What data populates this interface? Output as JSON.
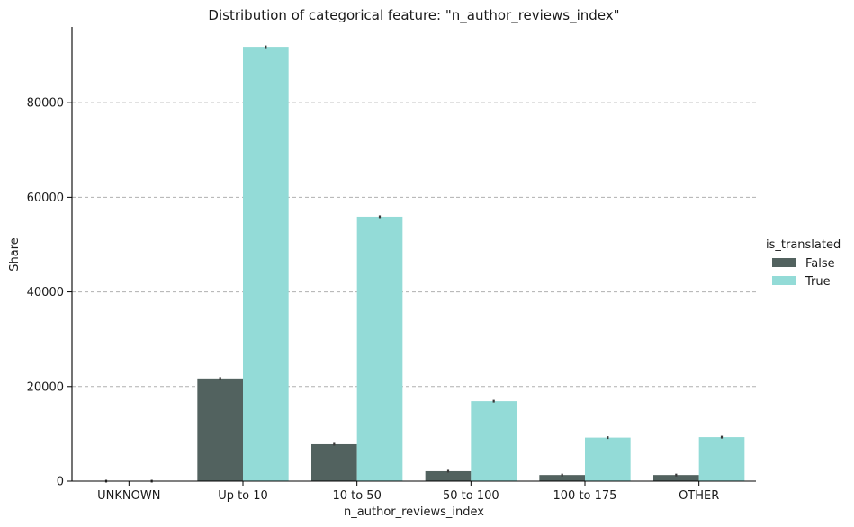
{
  "chart_data": {
    "type": "bar",
    "title": "Distribution of categorical feature: \"n_author_reviews_index\"",
    "xlabel": "n_author_reviews_index",
    "ylabel": "Share",
    "categories": [
      "UNKNOWN",
      "Up to 10",
      "10 to 50",
      "50 to 100",
      "100 to 175",
      "OTHER"
    ],
    "series": [
      {
        "name": "False",
        "color": "#52625f",
        "values": [
          0,
          21700,
          7800,
          2100,
          1300,
          1300
        ]
      },
      {
        "name": "True",
        "color": "#93dbd7",
        "values": [
          0,
          91800,
          55900,
          16900,
          9200,
          9300
        ]
      }
    ],
    "ylim": [
      0,
      96000
    ],
    "yticks": [
      0,
      20000,
      40000,
      60000,
      80000
    ],
    "grid": "y-dashed",
    "legend": {
      "title": "is_translated",
      "placement": "right"
    }
  }
}
